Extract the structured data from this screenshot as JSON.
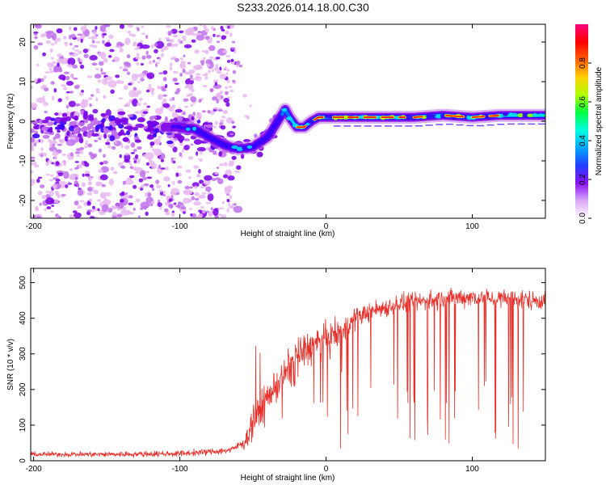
{
  "title": "S233.2026.014.18.00.C30",
  "colors": {
    "snr_line": "#e8302a",
    "colormap": [
      "#e8b8f0",
      "#c070ec",
      "#7a00e6",
      "#3a00ff",
      "#0070ff",
      "#00d8ff",
      "#00ff70",
      "#a0ff00",
      "#ffff00",
      "#ff8000",
      "#ff0000",
      "#ff0060"
    ]
  },
  "chart_data": [
    {
      "type": "heatmap",
      "name": "spectrogram",
      "xlabel": "Height of straight line (km)",
      "ylabel": "Frequency (Hz)",
      "xlim": [
        -202,
        150
      ],
      "ylim": [
        -24.5,
        24.5
      ],
      "xticks": [
        -200,
        -100,
        0,
        100
      ],
      "yticks": [
        -20,
        -10,
        0,
        10,
        20
      ],
      "xtick_labels": [
        "-200",
        "-100",
        "0",
        "100"
      ],
      "ytick_labels": [
        "-20",
        "-10",
        "0",
        "10",
        "20"
      ],
      "ridge": {
        "description": "dominant frequency vs height",
        "x": [
          -110,
          -100,
          -90,
          -80,
          -70,
          -60,
          -50,
          -40,
          -33,
          -28,
          -25,
          -20,
          -15,
          -10,
          -5,
          0,
          10,
          20,
          40,
          60,
          80,
          100,
          120,
          150
        ],
        "y": [
          -1.5,
          -1.5,
          -2,
          -4,
          -6,
          -7,
          -6.5,
          -4,
          0,
          3,
          1,
          -1.5,
          -1.5,
          0,
          1,
          1,
          1,
          1,
          1,
          1,
          1.5,
          1,
          1.5,
          1.5
        ]
      },
      "noise_region_x": [
        -202,
        -62
      ]
    },
    {
      "type": "colorbar",
      "name": "colorbar",
      "label": "Normalized spectral amplitude",
      "range": [
        0,
        1
      ],
      "ticks": [
        0.0,
        0.2,
        0.4,
        0.6,
        0.8
      ],
      "tick_labels": [
        "0.0",
        "0.2",
        "0.4",
        "0.6",
        "0.8"
      ]
    },
    {
      "type": "line",
      "name": "snr",
      "xlabel": "Height of straight line (km)",
      "ylabel": "SNR (10 * v/v)",
      "xlim": [
        -202,
        150
      ],
      "ylim": [
        0,
        540
      ],
      "xticks": [
        -200,
        -100,
        0,
        100
      ],
      "yticks": [
        0,
        100,
        200,
        300,
        400,
        500
      ],
      "xtick_labels": [
        "-200",
        "-100",
        "0",
        "100"
      ],
      "ytick_labels": [
        "0",
        "100",
        "200",
        "300",
        "400",
        "500"
      ],
      "baseline": {
        "x": [
          -202,
          -150,
          -100,
          -80,
          -65,
          -55,
          -50,
          -40,
          -30,
          -20,
          -10,
          0,
          10,
          20,
          30,
          50,
          80,
          100,
          120,
          150
        ],
        "y": [
          18,
          18,
          20,
          25,
          30,
          55,
          110,
          180,
          230,
          300,
          320,
          340,
          360,
          400,
          420,
          440,
          455,
          460,
          455,
          450
        ]
      },
      "noise_amplitude": {
        "x": [
          -202,
          -60,
          -50,
          -20,
          0,
          20,
          150
        ],
        "y": [
          10,
          14,
          60,
          80,
          70,
          40,
          40
        ]
      }
    }
  ]
}
